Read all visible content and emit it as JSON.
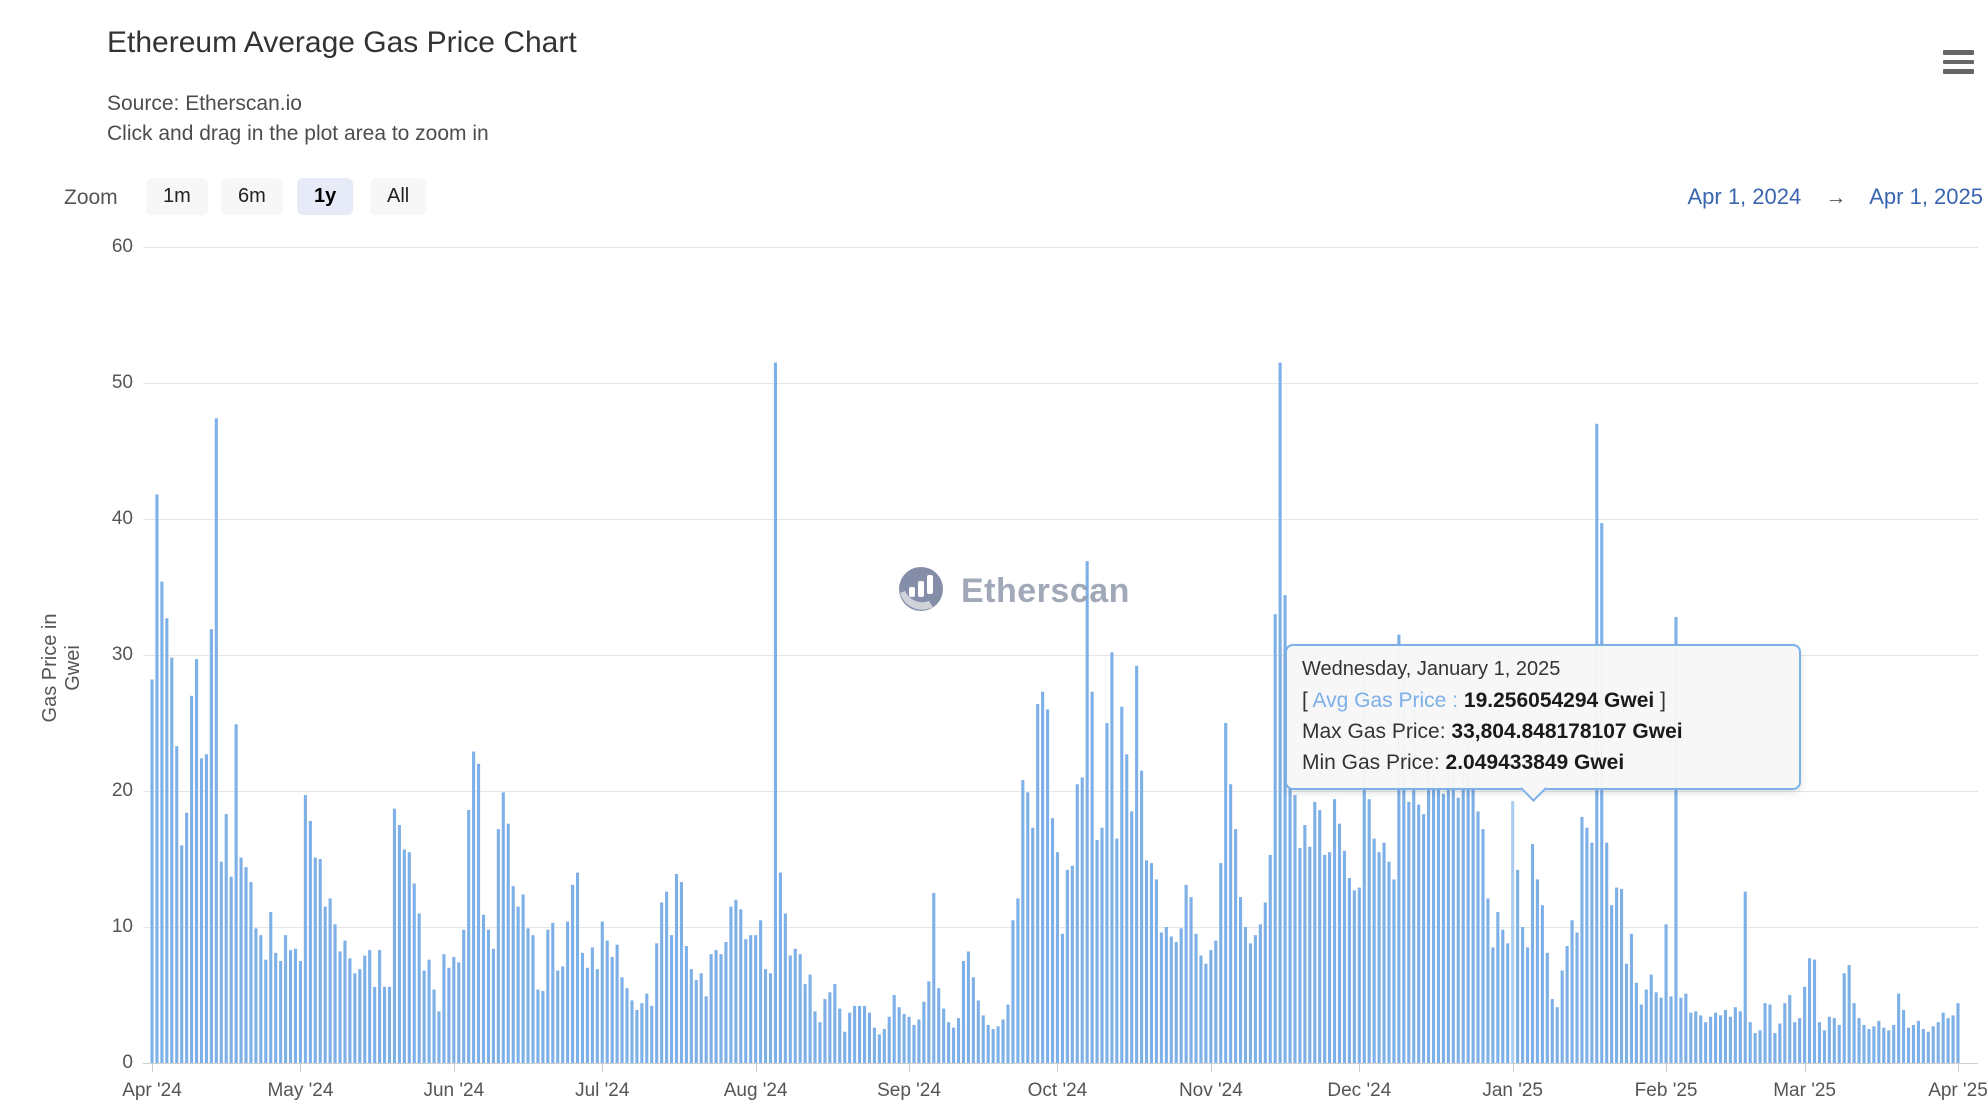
{
  "header": {
    "title": "Ethereum Average Gas Price Chart",
    "subtitle_source": "Source: Etherscan.io",
    "subtitle_hint": "Click and drag in the plot area to zoom in"
  },
  "toolbar": {
    "zoom_label": "Zoom",
    "buttons": [
      {
        "label": "1m",
        "selected": false
      },
      {
        "label": "6m",
        "selected": false
      },
      {
        "label": "1y",
        "selected": true
      },
      {
        "label": "All",
        "selected": false
      }
    ],
    "range_from": "Apr 1, 2024",
    "range_arrow": "→",
    "range_to": "Apr 1, 2025"
  },
  "watermark": {
    "text": "Etherscan"
  },
  "tooltip": {
    "date": "Wednesday, January 1, 2025",
    "bracket_open": "[",
    "avg_label": "Avg Gas Price",
    "colon": ":",
    "avg_value": "19.256054294 Gwei",
    "bracket_close": "]",
    "max_label": "Max Gas Price:",
    "max_value": "33,804.848178107 Gwei",
    "min_label": "Min Gas Price:",
    "min_value": "2.049433849 Gwei"
  },
  "colors": {
    "bar": "#7eb0e8",
    "bar_highlight": "#a9cdf1",
    "gridline": "#e6e6e6",
    "link_blue": "#3a66b0",
    "tooltip_border": "#7cb0e8"
  },
  "chart_data": {
    "type": "bar",
    "title": "Ethereum Average Gas Price Chart",
    "ylabel": "Gas Price in Gwei",
    "ylim": [
      0,
      60
    ],
    "yticks": [
      0,
      10,
      20,
      30,
      40,
      50,
      60
    ],
    "grid": true,
    "x_start": "2024-04-01",
    "x_end": "2025-04-01",
    "months": [
      {
        "label": "Apr '24",
        "day_offset": 0
      },
      {
        "label": "May '24",
        "day_offset": 30
      },
      {
        "label": "Jun '24",
        "day_offset": 61
      },
      {
        "label": "Jul '24",
        "day_offset": 91
      },
      {
        "label": "Aug '24",
        "day_offset": 122
      },
      {
        "label": "Sep '24",
        "day_offset": 153
      },
      {
        "label": "Oct '24",
        "day_offset": 183
      },
      {
        "label": "Nov '24",
        "day_offset": 214
      },
      {
        "label": "Dec '24",
        "day_offset": 244
      },
      {
        "label": "Jan '25",
        "day_offset": 275
      },
      {
        "label": "Feb '25",
        "day_offset": 306
      },
      {
        "label": "Mar '25",
        "day_offset": 334
      },
      {
        "label": "Apr '25",
        "day_offset": 365
      }
    ],
    "highlight": {
      "index": 275,
      "date": "Wednesday, January 1, 2025",
      "value": 19.256054294
    },
    "values": [
      28.2,
      41.8,
      35.4,
      32.7,
      29.8,
      23.3,
      16.0,
      18.4,
      27.0,
      29.7,
      22.4,
      22.7,
      31.9,
      47.4,
      14.8,
      18.3,
      13.7,
      24.9,
      15.1,
      14.4,
      13.3,
      9.9,
      9.4,
      7.6,
      11.1,
      8.1,
      7.5,
      9.4,
      8.3,
      8.4,
      7.5,
      19.7,
      17.8,
      15.1,
      15.0,
      11.5,
      12.1,
      10.2,
      8.2,
      9.0,
      7.7,
      6.6,
      6.9,
      7.9,
      8.3,
      5.6,
      8.3,
      5.6,
      5.6,
      18.7,
      17.5,
      15.7,
      15.5,
      13.2,
      11.0,
      6.8,
      7.6,
      5.4,
      3.8,
      8.0,
      7.0,
      7.8,
      7.4,
      9.8,
      18.6,
      22.9,
      22.0,
      10.9,
      9.8,
      8.4,
      17.2,
      19.9,
      17.6,
      13.0,
      11.5,
      12.4,
      9.9,
      9.4,
      5.4,
      5.3,
      9.8,
      10.3,
      6.8,
      7.1,
      10.4,
      13.1,
      14.0,
      8.1,
      7.0,
      8.5,
      6.9,
      10.4,
      9.0,
      7.8,
      8.7,
      6.3,
      5.5,
      4.6,
      3.9,
      4.4,
      5.1,
      4.2,
      8.8,
      11.8,
      12.6,
      9.4,
      13.9,
      13.3,
      8.6,
      6.9,
      6.1,
      6.6,
      4.9,
      8.0,
      8.3,
      8.0,
      8.9,
      11.5,
      12.0,
      11.3,
      9.1,
      9.4,
      9.4,
      10.5,
      6.9,
      6.6,
      51.5,
      14.0,
      11.0,
      7.9,
      8.4,
      8.0,
      5.8,
      6.5,
      3.8,
      3.0,
      4.7,
      5.2,
      5.8,
      4.0,
      2.3,
      3.7,
      4.2,
      4.2,
      4.2,
      3.7,
      2.6,
      2.1,
      2.5,
      3.4,
      5.0,
      4.1,
      3.6,
      3.4,
      2.8,
      3.2,
      4.5,
      6.0,
      12.5,
      5.5,
      4.0,
      3.0,
      2.6,
      3.3,
      7.5,
      8.2,
      6.3,
      4.6,
      3.5,
      2.8,
      2.5,
      2.7,
      3.2,
      4.3,
      10.5,
      12.1,
      20.8,
      19.9,
      17.3,
      26.4,
      27.3,
      26.0,
      18.0,
      15.5,
      9.5,
      14.2,
      14.5,
      20.5,
      21.0,
      36.9,
      27.3,
      16.4,
      17.3,
      25.0,
      30.2,
      16.5,
      26.2,
      22.7,
      18.5,
      29.2,
      21.5,
      14.9,
      14.7,
      13.5,
      9.6,
      10.0,
      9.3,
      8.9,
      9.9,
      13.1,
      12.2,
      9.5,
      7.9,
      7.3,
      8.3,
      9.0,
      14.7,
      25.0,
      20.5,
      17.2,
      12.2,
      10.0,
      8.8,
      9.4,
      10.2,
      11.8,
      15.3,
      33.0,
      51.5,
      34.4,
      20.8,
      19.7,
      15.8,
      17.5,
      15.9,
      19.2,
      18.6,
      15.3,
      15.5,
      19.4,
      17.6,
      15.6,
      13.6,
      12.7,
      12.9,
      30.0,
      19.4,
      16.5,
      15.5,
      16.2,
      14.8,
      13.5,
      31.5,
      28.2,
      19.2,
      27.9,
      19.0,
      18.3,
      22.5,
      21.2,
      20.5,
      19.8,
      24.5,
      23.2,
      19.5,
      21.8,
      25.5,
      20.2,
      18.5,
      17.2,
      12.1,
      8.5,
      11.1,
      9.8,
      8.8,
      19.256054294,
      14.2,
      10.0,
      8.5,
      16.1,
      13.5,
      11.6,
      8.1,
      4.7,
      4.1,
      6.8,
      8.6,
      10.5,
      9.6,
      18.1,
      17.3,
      16.2,
      47.0,
      39.7,
      16.2,
      11.6,
      12.9,
      12.8,
      7.3,
      9.5,
      5.9,
      4.3,
      5.4,
      6.5,
      5.2,
      4.8,
      10.2,
      4.9,
      32.8,
      4.8,
      5.1,
      3.7,
      3.8,
      3.5,
      3.0,
      3.4,
      3.7,
      3.5,
      3.9,
      3.4,
      4.1,
      3.8,
      12.6,
      3.0,
      2.2,
      2.4,
      4.4,
      4.3,
      2.2,
      2.9,
      4.4,
      5.0,
      3.0,
      3.3,
      5.6,
      7.7,
      7.6,
      3.0,
      2.4,
      3.4,
      3.3,
      2.8,
      6.6,
      7.2,
      4.4,
      3.3,
      2.8,
      2.5,
      2.7,
      3.1,
      2.6,
      2.4,
      2.8,
      5.1,
      3.9,
      2.6,
      2.8,
      3.1,
      2.5,
      2.3,
      2.7,
      3.0,
      3.7,
      3.3,
      3.5,
      4.4
    ]
  }
}
